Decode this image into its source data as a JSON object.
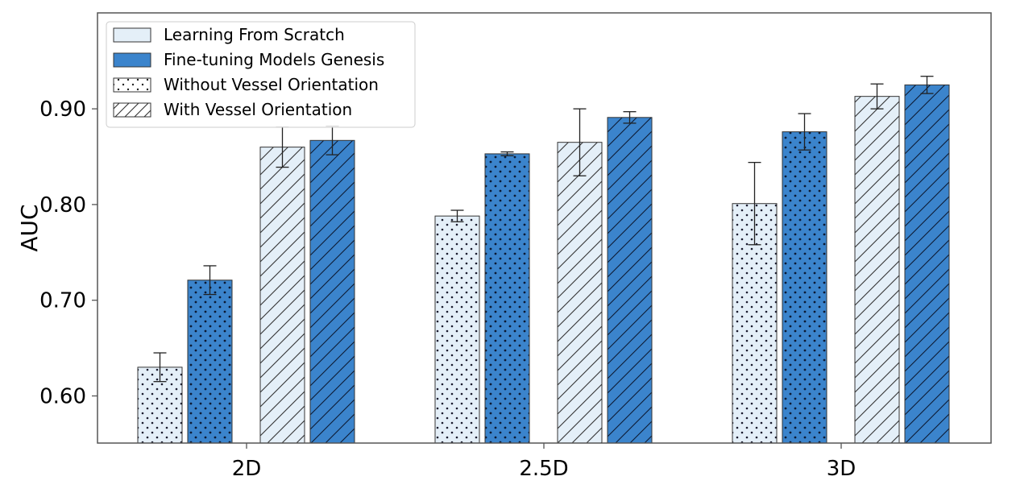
{
  "chart_data": {
    "type": "bar",
    "title": "",
    "xlabel": "",
    "ylabel": "AUC",
    "categories": [
      "2D",
      "2.5D",
      "3D"
    ],
    "ylim": [
      0.55,
      1.0
    ],
    "yticks": [
      0.6,
      0.7,
      0.8,
      0.9
    ],
    "ytick_labels": [
      "0.60",
      "0.70",
      "0.80",
      "0.90"
    ],
    "grid": false,
    "legend_position": "top-left",
    "colors": {
      "scratch": "#e4eff8",
      "genesis": "#3b84cc",
      "edge": "#333333",
      "errorbar": "#222222",
      "axis": "#555555"
    },
    "legend": [
      {
        "label": "Learning From Scratch",
        "fill": "scratch",
        "pattern": "none"
      },
      {
        "label": "Fine-tuning Models Genesis",
        "fill": "genesis",
        "pattern": "none"
      },
      {
        "label": "Without Vessel Orientation",
        "fill": "white",
        "pattern": "dots"
      },
      {
        "label": "With Vessel Orientation",
        "fill": "white",
        "pattern": "hatch"
      }
    ],
    "series": [
      {
        "method": "scratch",
        "orientation": "without",
        "values": [
          0.63,
          0.788,
          0.801
        ],
        "errors": [
          0.015,
          0.006,
          0.043
        ]
      },
      {
        "method": "genesis",
        "orientation": "without",
        "values": [
          0.721,
          0.853,
          0.876
        ],
        "errors": [
          0.015,
          0.002,
          0.019
        ]
      },
      {
        "method": "scratch",
        "orientation": "with",
        "values": [
          0.86,
          0.865,
          0.913
        ],
        "errors": [
          0.021,
          0.035,
          0.013
        ]
      },
      {
        "method": "genesis",
        "orientation": "with",
        "values": [
          0.867,
          0.891,
          0.925
        ],
        "errors": [
          0.015,
          0.006,
          0.009
        ]
      }
    ]
  }
}
